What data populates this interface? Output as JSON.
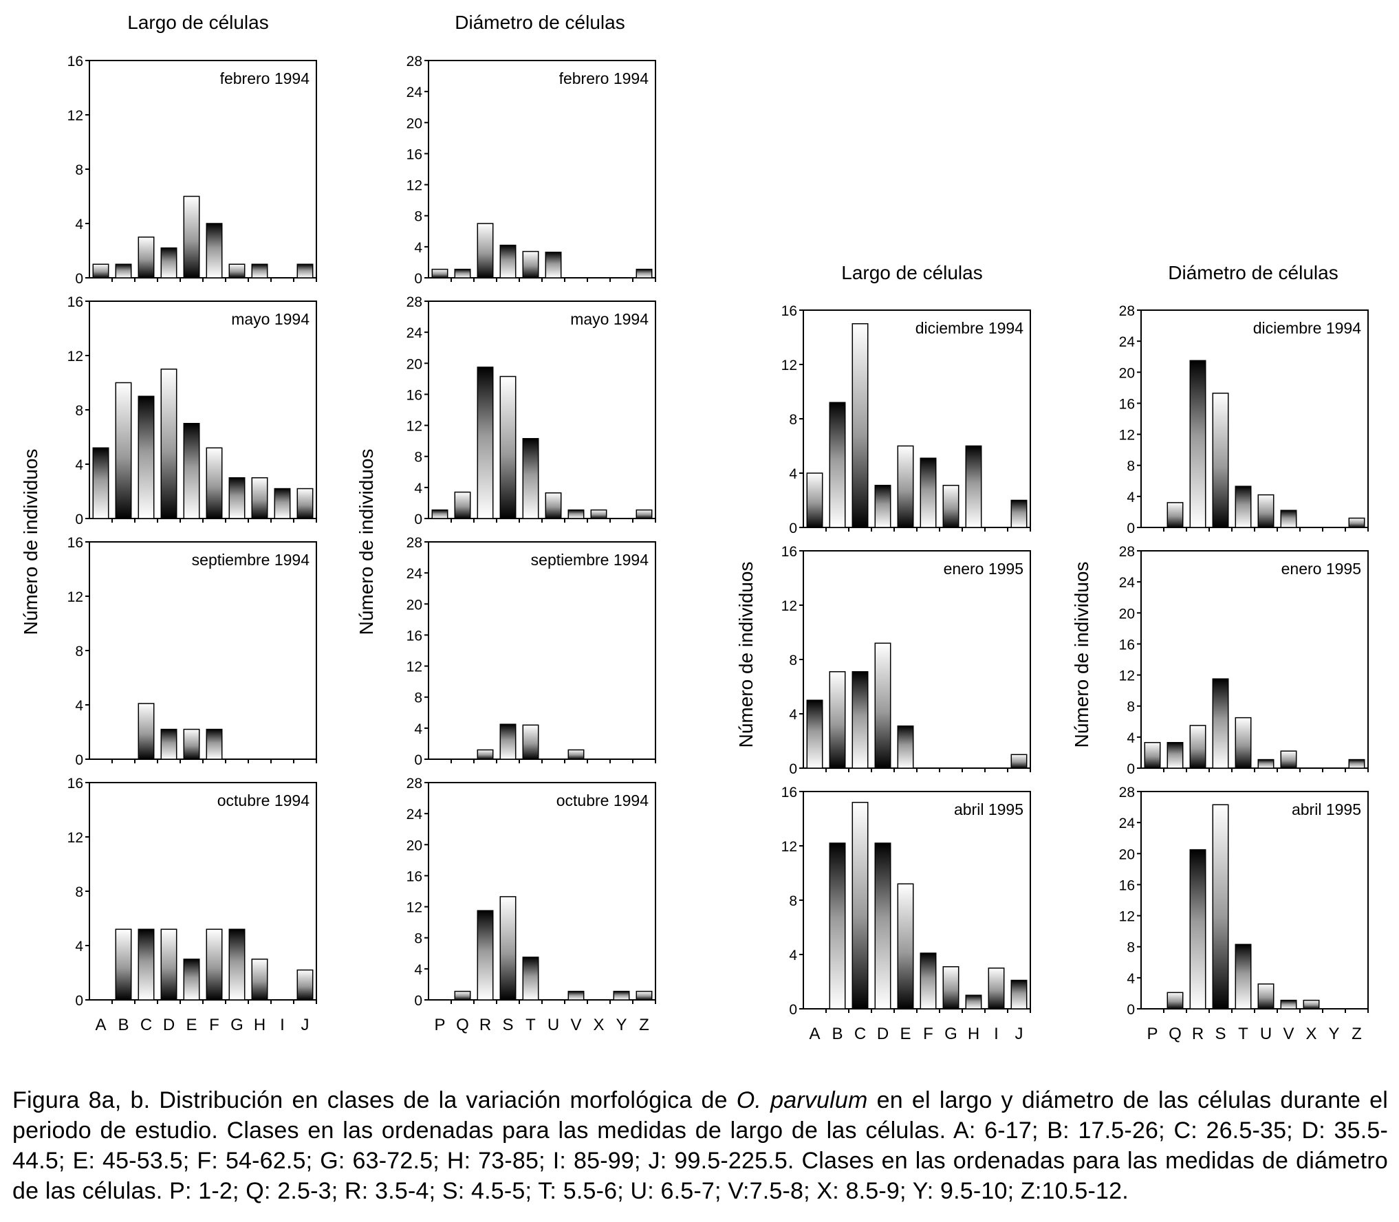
{
  "figure": {
    "panel_a": {
      "col_len_title": "Largo de células",
      "col_diam_title": "Diámetro de células",
      "ylabel_len": "Número de individuos",
      "ylabel_diam": "Número de individuos"
    },
    "panel_b": {
      "col_len_title": "Largo de células",
      "col_diam_title": "Diámetro de células",
      "ylabel_len": "Número de individuos",
      "ylabel_diam": "Número de individuos"
    },
    "caption": {
      "part1": "Figura 8a, b. Distribución en clases de la variación morfológica de ",
      "species": "O. parvulum",
      "part2": " en el largo y diámetro de las células durante el periodo de estudio. Clases en las ordenadas para las medidas de largo de las células. A: 6-17; B: 17.5-26; C: 26.5-35; D: 35.5-44.5; E: 45-53.5; F: 54-62.5; G: 63-72.5; H: 73-85; I: 85-99; J: 99.5-225.5. Clases en las ordenadas para las medidas de diámetro de las células. P: 1-2; Q: 2.5-3; R: 3.5-4; S: 4.5-5; T: 5.5-6; U: 6.5-7; V:7.5-8; X: 8.5-9; Y: 9.5-10; Z:10.5-12."
    }
  },
  "chart_data": [
    {
      "id": "len-feb-1994",
      "type": "bar",
      "title": "febrero 1994",
      "group": "a",
      "measure": "largo",
      "categories": [
        "A",
        "B",
        "C",
        "D",
        "E",
        "F",
        "G",
        "H",
        "I",
        "J"
      ],
      "values": [
        1,
        1,
        3,
        2.2,
        6,
        4,
        1,
        1,
        0,
        1
      ],
      "ylim": [
        0,
        16
      ],
      "yticks": [
        0,
        4,
        8,
        12,
        16
      ]
    },
    {
      "id": "len-may-1994",
      "type": "bar",
      "title": "mayo 1994",
      "group": "a",
      "measure": "largo",
      "categories": [
        "A",
        "B",
        "C",
        "D",
        "E",
        "F",
        "G",
        "H",
        "I",
        "J"
      ],
      "values": [
        5.2,
        10,
        9,
        11,
        7,
        5.2,
        3,
        3,
        2.2,
        2.2
      ],
      "ylim": [
        0,
        16
      ],
      "yticks": [
        0,
        4,
        8,
        12,
        16
      ]
    },
    {
      "id": "len-sep-1994",
      "type": "bar",
      "title": "septiembre 1994",
      "group": "a",
      "measure": "largo",
      "categories": [
        "A",
        "B",
        "C",
        "D",
        "E",
        "F",
        "G",
        "H",
        "I",
        "J"
      ],
      "values": [
        0,
        0,
        4.1,
        2.2,
        2.2,
        2.2,
        0,
        0,
        0,
        0
      ],
      "ylim": [
        0,
        16
      ],
      "yticks": [
        0,
        4,
        8,
        12,
        16
      ]
    },
    {
      "id": "len-oct-1994",
      "type": "bar",
      "title": "octubre 1994",
      "group": "a",
      "measure": "largo",
      "categories": [
        "A",
        "B",
        "C",
        "D",
        "E",
        "F",
        "G",
        "H",
        "I",
        "J"
      ],
      "values": [
        0,
        5.2,
        5.2,
        5.2,
        3,
        5.2,
        5.2,
        3,
        0,
        2.2
      ],
      "ylim": [
        0,
        16
      ],
      "yticks": [
        0,
        4,
        8,
        12,
        16
      ]
    },
    {
      "id": "diam-feb-1994",
      "type": "bar",
      "title": "febrero 1994",
      "group": "a",
      "measure": "diametro",
      "categories": [
        "P",
        "Q",
        "R",
        "S",
        "T",
        "U",
        "V",
        "X",
        "Y",
        "Z"
      ],
      "values": [
        1.1,
        1.1,
        7,
        4.2,
        3.4,
        3.3,
        0,
        0,
        0,
        1.1
      ],
      "ylim": [
        0,
        28
      ],
      "yticks": [
        0,
        4,
        8,
        12,
        16,
        20,
        24,
        28
      ]
    },
    {
      "id": "diam-may-1994",
      "type": "bar",
      "title": "mayo 1994",
      "group": "a",
      "measure": "diametro",
      "categories": [
        "P",
        "Q",
        "R",
        "S",
        "T",
        "U",
        "V",
        "X",
        "Y",
        "Z"
      ],
      "values": [
        1.1,
        3.4,
        19.5,
        18.3,
        10.3,
        3.3,
        1.1,
        1.1,
        0,
        1.1
      ],
      "ylim": [
        0,
        28
      ],
      "yticks": [
        0,
        4,
        8,
        12,
        16,
        20,
        24,
        28
      ]
    },
    {
      "id": "diam-sep-1994",
      "type": "bar",
      "title": "septiembre 1994",
      "group": "a",
      "measure": "diametro",
      "categories": [
        "P",
        "Q",
        "R",
        "S",
        "T",
        "U",
        "V",
        "X",
        "Y",
        "Z"
      ],
      "values": [
        0,
        0,
        1.2,
        4.5,
        4.4,
        0,
        1.2,
        0,
        0,
        0
      ],
      "ylim": [
        0,
        28
      ],
      "yticks": [
        0,
        4,
        8,
        12,
        16,
        20,
        24,
        28
      ]
    },
    {
      "id": "diam-oct-1994",
      "type": "bar",
      "title": "octubre 1994",
      "group": "a",
      "measure": "diametro",
      "categories": [
        "P",
        "Q",
        "R",
        "S",
        "T",
        "U",
        "V",
        "X",
        "Y",
        "Z"
      ],
      "values": [
        0,
        1.1,
        11.5,
        13.3,
        5.5,
        0,
        1.1,
        0,
        1.1,
        1.1
      ],
      "ylim": [
        0,
        28
      ],
      "yticks": [
        0,
        4,
        8,
        12,
        16,
        20,
        24,
        28
      ]
    },
    {
      "id": "len-dic-1994",
      "type": "bar",
      "title": "diciembre 1994",
      "group": "b",
      "measure": "largo",
      "categories": [
        "A",
        "B",
        "C",
        "D",
        "E",
        "F",
        "G",
        "H",
        "I",
        "J"
      ],
      "values": [
        4,
        9.2,
        15,
        3.1,
        6,
        5.1,
        3.1,
        6,
        0,
        2
      ],
      "ylim": [
        0,
        16
      ],
      "yticks": [
        0,
        4,
        8,
        12,
        16
      ]
    },
    {
      "id": "len-ene-1995",
      "type": "bar",
      "title": "enero 1995",
      "group": "b",
      "measure": "largo",
      "categories": [
        "A",
        "B",
        "C",
        "D",
        "E",
        "F",
        "G",
        "H",
        "I",
        "J"
      ],
      "values": [
        5,
        7.1,
        7.1,
        9.2,
        3.1,
        0,
        0,
        0,
        0,
        1
      ],
      "ylim": [
        0,
        16
      ],
      "yticks": [
        0,
        4,
        8,
        12,
        16
      ]
    },
    {
      "id": "len-abr-1995",
      "type": "bar",
      "title": "abril 1995",
      "group": "b",
      "measure": "largo",
      "categories": [
        "A",
        "B",
        "C",
        "D",
        "E",
        "F",
        "G",
        "H",
        "I",
        "J"
      ],
      "values": [
        0,
        12.2,
        15.2,
        12.2,
        9.2,
        4.1,
        3.1,
        1,
        3,
        2.1
      ],
      "ylim": [
        0,
        16
      ],
      "yticks": [
        0,
        4,
        8,
        12,
        16
      ]
    },
    {
      "id": "diam-dic-1994",
      "type": "bar",
      "title": "diciembre 1994",
      "group": "b",
      "measure": "diametro",
      "categories": [
        "P",
        "Q",
        "R",
        "S",
        "T",
        "U",
        "V",
        "X",
        "Y",
        "Z"
      ],
      "values": [
        0,
        3.2,
        21.5,
        17.3,
        5.3,
        4.2,
        2.2,
        0,
        0,
        1.2
      ],
      "ylim": [
        0,
        28
      ],
      "yticks": [
        0,
        4,
        8,
        12,
        16,
        20,
        24,
        28
      ]
    },
    {
      "id": "diam-ene-1995",
      "type": "bar",
      "title": "enero 1995",
      "group": "b",
      "measure": "diametro",
      "categories": [
        "P",
        "Q",
        "R",
        "S",
        "T",
        "U",
        "V",
        "X",
        "Y",
        "Z"
      ],
      "values": [
        3.3,
        3.3,
        5.5,
        11.5,
        6.5,
        1.1,
        2.2,
        0,
        0,
        1.1
      ],
      "ylim": [
        0,
        28
      ],
      "yticks": [
        0,
        4,
        8,
        12,
        16,
        20,
        24,
        28
      ]
    },
    {
      "id": "diam-abr-1995",
      "type": "bar",
      "title": "abril 1995",
      "group": "b",
      "measure": "diametro",
      "categories": [
        "P",
        "Q",
        "R",
        "S",
        "T",
        "U",
        "V",
        "X",
        "Y",
        "Z"
      ],
      "values": [
        0,
        2.1,
        20.5,
        26.3,
        8.3,
        3.2,
        1.1,
        1.1,
        0,
        0
      ],
      "ylim": [
        0,
        28
      ],
      "yticks": [
        0,
        4,
        8,
        12,
        16,
        20,
        24,
        28
      ]
    }
  ]
}
